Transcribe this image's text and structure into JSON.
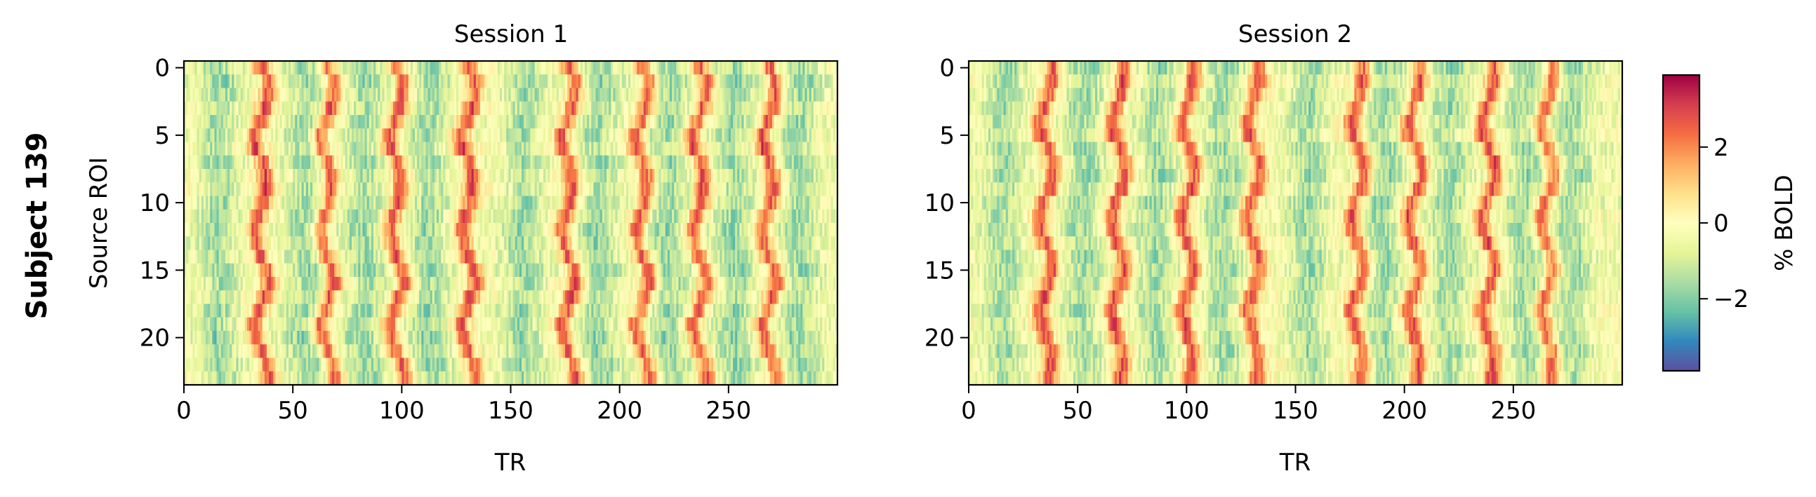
{
  "figure": {
    "row_label": "Subject 139"
  },
  "chart_data": [
    {
      "type": "heatmap",
      "title": "Session 1",
      "xlabel": "TR",
      "ylabel": "Source ROI",
      "xlim": [
        0,
        300
      ],
      "ylim": [
        23.5,
        -0.5
      ],
      "rows": 24,
      "columns": 300,
      "x_ticks": [
        0,
        50,
        100,
        150,
        200,
        250
      ],
      "y_ticks": [
        0,
        5,
        10,
        15,
        20
      ],
      "colormap": "Spectral_r",
      "value_range": [
        -3.9,
        3.9
      ],
      "peak_columns": [
        35,
        65,
        97,
        130,
        176,
        210,
        236,
        268
      ],
      "trough_columns": [
        15,
        55,
        82,
        112,
        155,
        190,
        222,
        252,
        282
      ],
      "summary": "ROI x TR time series with vertical bands of high % BOLD (red) near TR 35, 65, 97, 130, 176, 210, 236, 268 and low values (blue) around TR 220-225"
    },
    {
      "type": "heatmap",
      "title": "Session 2",
      "xlabel": "TR",
      "ylabel": "",
      "xlim": [
        0,
        300
      ],
      "ylim": [
        23.5,
        -0.5
      ],
      "rows": 24,
      "columns": 300,
      "x_ticks": [
        0,
        50,
        100,
        150,
        200,
        250
      ],
      "y_ticks": [
        0,
        5,
        10,
        15,
        20
      ],
      "colormap": "Spectral_r",
      "value_range": [
        -3.9,
        3.9
      ],
      "peak_columns": [
        35,
        68,
        100,
        130,
        178,
        204,
        238,
        265
      ],
      "trough_columns": [
        15,
        52,
        85,
        116,
        155,
        190,
        220,
        255,
        276
      ],
      "summary": "ROI x TR time series with vertical bands of high % BOLD (red) near TR 35, 68, 100, 130, 178, 204, 238, 265 and low values (blue) around TR 270-280"
    }
  ],
  "colorbar": {
    "label": "% BOLD",
    "range": [
      -3.9,
      3.9
    ],
    "ticks": [
      2,
      0,
      -2
    ],
    "tick_labels": [
      "2",
      "0",
      "−2"
    ]
  }
}
